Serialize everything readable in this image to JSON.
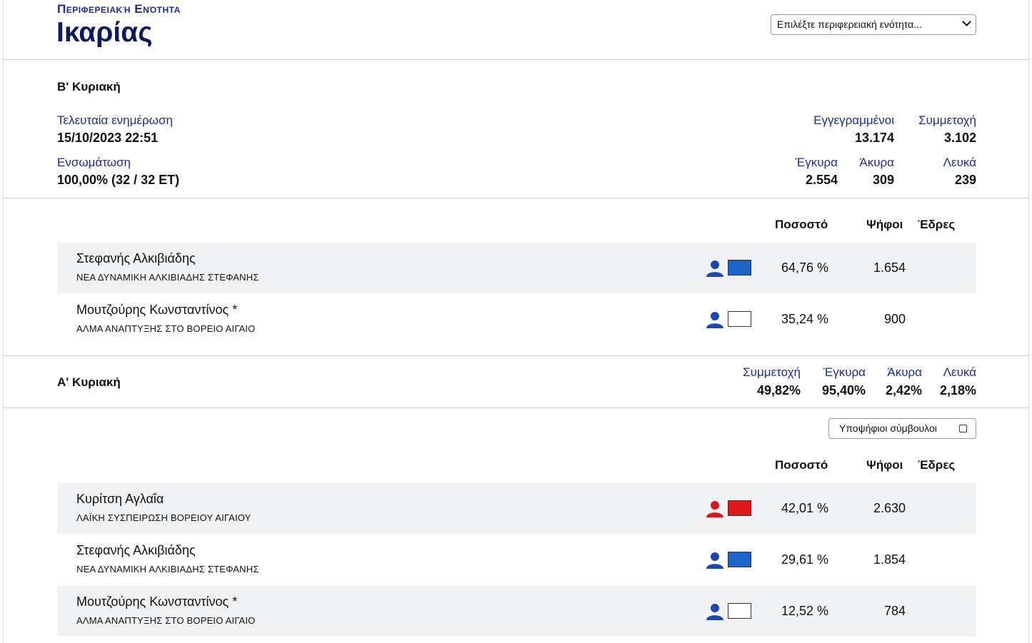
{
  "header": {
    "subtitle": "Περιφερειακή Ενότητα",
    "title": "Ικαρίας",
    "select_value": "Επιλέξτε περιφερειακή ενότητα..."
  },
  "second_round": {
    "title": "Β' Κυριακή",
    "last_update_label": "Τελευταία ενημέρωση",
    "last_update_value": "15/10/2023 22:51",
    "incorporation_label": "Ενσωμάτωση",
    "incorporation_value": "100,00% (32 / 32 ΕΤ)",
    "registered_label": "Εγγεγραμμένοι",
    "registered_value": "13.174",
    "turnout_label": "Συμμετοχή",
    "turnout_value": "3.102",
    "valid_label": "Έγκυρα",
    "valid_value": "2.554",
    "invalid_label": "Άκυρα",
    "invalid_value": "309",
    "blank_label": "Λευκά",
    "blank_value": "239",
    "columns": {
      "percent": "Ποσοστό",
      "votes": "Ψήφοι",
      "seats": "Έδρες"
    },
    "candidates": [
      {
        "name": "Στεφανής Αλκιβιάδης",
        "party": "ΝΕΑ ΔΥΝΑΜΙΚΗ ΑΛΚΙΒΙΑΔΗΣ ΣΤΕΦΑΝΗΣ",
        "percent": "64,76 %",
        "votes": "1.654",
        "color": "#1a64c8",
        "person_color": "#1a47b8"
      },
      {
        "name": "Μουτζούρης Κωνσταντίνος *",
        "party": "ΑΛΜΑ ΑΝΑΠΤΥΞΗΣ ΣΤΟ ΒΟΡΕΙΟ ΑΙΓΑΙΟ",
        "percent": "35,24 %",
        "votes": "900",
        "color": "#ffffff",
        "person_color": "#1a47b8"
      }
    ]
  },
  "first_round": {
    "title": "Α' Κυριακή",
    "turnout_label": "Συμμετοχή",
    "turnout_value": "49,82%",
    "valid_label": "Έγκυρα",
    "valid_value": "95,40%",
    "invalid_label": "Άκυρα",
    "invalid_value": "2,42%",
    "blank_label": "Λευκά",
    "blank_value": "2,18%",
    "toggle_label": "Υποψήφιοι σύμβουλοι",
    "columns": {
      "percent": "Ποσοστό",
      "votes": "Ψήφοι",
      "seats": "Έδρες"
    },
    "candidates": [
      {
        "name": "Κυρίτση Αγλαΐα",
        "party": "ΛΑΪΚΗ ΣΥΣΠΕΙΡΩΣΗ ΒΟΡΕΙΟΥ ΑΙΓΑΙΟΥ",
        "percent": "42,01 %",
        "votes": "2.630",
        "color": "#e01818",
        "person_color": "#d81818"
      },
      {
        "name": "Στεφανής Αλκιβιάδης",
        "party": "ΝΕΑ ΔΥΝΑΜΙΚΗ ΑΛΚΙΒΙΑΔΗΣ ΣΤΕΦΑΝΗΣ",
        "percent": "29,61 %",
        "votes": "1.854",
        "color": "#1a64c8",
        "person_color": "#1a47b8"
      },
      {
        "name": "Μουτζούρης Κωνσταντίνος *",
        "party": "ΑΛΜΑ ΑΝΑΠΤΥΞΗΣ ΣΤΟ ΒΟΡΕΙΟ ΑΙΓΑΙΟ",
        "percent": "12,52 %",
        "votes": "784",
        "color": "#ffffff",
        "person_color": "#1a47b8"
      }
    ]
  }
}
